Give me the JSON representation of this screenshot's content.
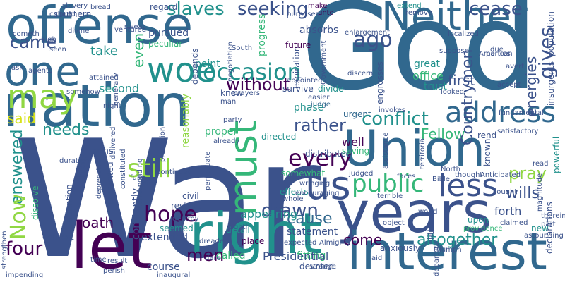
{
  "palette": {
    "purple": "#440154",
    "indigo": "#3b528b",
    "blue": "#31688e",
    "teal": "#21918c",
    "green": "#35b779",
    "lime": "#90d743",
    "yellow": "#d7e219",
    "bg": "#ffffff"
  },
  "words": {
    "war": "War",
    "god": "God",
    "offense": "offense",
    "nation": "nation",
    "neither": "Neither",
    "union": "Union",
    "years": "years",
    "interest": "interest",
    "right": "right",
    "let": "let",
    "one": "one",
    "woe": "woe",
    "may": "may",
    "must": "must",
    "us": "us",
    "address": "address",
    "occasion": "occasion",
    "less": "less",
    "public": "public",
    "every": "every",
    "still": "still",
    "came": "came",
    "slaves": "slaves",
    "seeking": "seeking",
    "cease": "cease",
    "ago": "ago",
    "gives": "gives",
    "take": "take",
    "without": "without",
    "four": "four",
    "hope": "hope",
    "conflict": "conflict",
    "rather": "rather",
    "drawn": "drawn",
    "cause": "cause",
    "pray": "pray",
    "wills": "wills",
    "altogether": "altogether",
    "come": "come",
    "said": "said",
    "needs": "needs",
    "answered": "answered",
    "now": "Now",
    "oath": "oath",
    "men": "men",
    "fellow": "Fellow",
    "countrymen": "Countrymen",
    "energies": "energies",
    "point": "point",
    "even": "even",
    "first": "first",
    "office": "office",
    "trust": "trust",
    "great": "great",
    "second": "second",
    "appearing": "appearing",
    "constantly": "constantly",
    "reasonably": "reasonably",
    "proper": "proper",
    "well": "well",
    "somewhat": "somewhat",
    "detail": "detail",
    "statement": "statement",
    "fitting": "fitting",
    "presidential": "Presidential",
    "extended": "extended",
    "course": "course",
    "dissolve": "dissolve",
    "contest": "contest",
    "attention": "attention",
    "seemed": "seemed",
    "progress": "progress",
    "engrosses": "engrosses",
    "phase": "phase",
    "judge": "judge",
    "urgent": "urgent",
    "directed": "directed",
    "saving": "saving",
    "distributed": "distributed",
    "little": "little",
    "known": "known",
    "forth": "forth",
    "upon": "upon",
    "declarations": "declarations",
    "new": "new",
    "chiefly": "chiefly",
    "arms": "arms",
    "presented": "presented",
    "depends": "depends",
    "expiration": "expiration",
    "survive": "survive",
    "pursued": "pursued",
    "regard": "regard",
    "absorbs": "absorbs",
    "peculiar": "peculiar",
    "future": "future",
    "knew": "knew",
    "divide": "divide",
    "make": "make",
    "unto": "unto",
    "extend": "extend",
    "southern": "southern",
    "ventured": "ventured",
    "high": "high",
    "agents": "agents",
    "divine": "divine",
    "localized": "localized",
    "parties": "parties",
    "avert": "avert",
    "accept": "accept",
    "insurgents": "insurgents",
    "population": "population",
    "magnitude": "magnitude",
    "powerful": "powerful",
    "read": "read",
    "satisfactory": "satisfactory",
    "rend": "rend",
    "fundamental": "fundamental",
    "sought": "sought",
    "claimed": "claimed",
    "providence": "providence",
    "therein": "therein",
    "part": "part",
    "astounding": "astounding",
    "triumph": "triumph",
    "anxiously": "anxiously",
    "object": "object",
    "world": "world",
    "strange": "strange",
    "devoted": "devoted",
    "called": "called",
    "dreaded": "dreaded",
    "place": "place",
    "inaugural": "inaugural",
    "perish": "perish",
    "impending": "impending",
    "strengthen": "strengthen",
    "result": "result",
    "time": "time",
    "deprecated": "deprecated",
    "constituted": "constituted",
    "delivered": "delivered",
    "corresponding": "corresponding",
    "destroy": "destroy",
    "restrict": "restrict",
    "civil": "civil",
    "effects": "effects",
    "whole": "whole",
    "encouraging": "encouraging",
    "city": "city",
    "thought": "thought",
    "anticipated": "Anticipated",
    "terrible": "terrible",
    "bible": "Bible",
    "north": "North",
    "eighth": "eighth",
    "almighty": "Almighty",
    "expected": "expected",
    "dare": "dare",
    "fully": "fully",
    "colored": "colored",
    "slavery": "slavery",
    "generally": "generally",
    "somehow": "somehow",
    "night": "night",
    "attained": "attained",
    "seen": "seen",
    "ask": "ask",
    "cometh": "cometh",
    "prayers": "prayers",
    "man": "man",
    "party": "party",
    "already": "already",
    "continued": "continued",
    "duration": "duration",
    "prediction": "prediction",
    "invokes": "invokes",
    "assistance": "assistance",
    "territorial": "territorial",
    "faces": "faces",
    "judged": "judged",
    "easier": "easier",
    "discern": "discern",
    "looked": "looked",
    "american": "American",
    "suppose": "suppose",
    "purposes": "purposes",
    "remove": "remove",
    "enlargement": "enlargement",
    "due": "due",
    "appointed": "appointed",
    "government": "Government",
    "south": "South",
    "negotiation": "negotiation",
    "sweat": "sweat",
    "bread": "bread",
    "perpetuate": "perpetuate",
    "wringing": "wringing",
    "aid": "aid",
    "departure": "departure"
  }
}
